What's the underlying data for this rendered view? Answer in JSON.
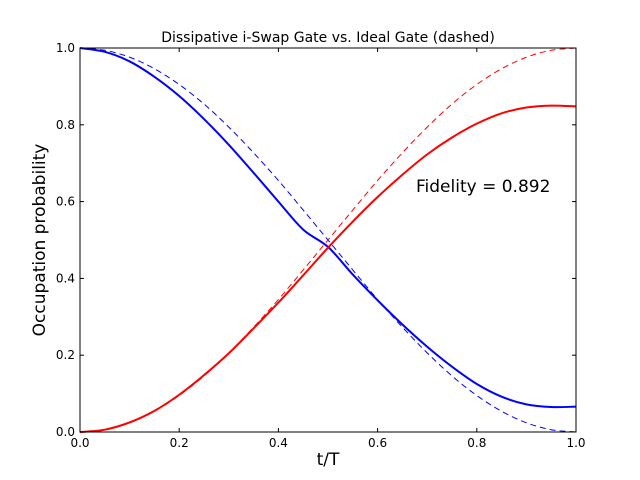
{
  "chart_data": {
    "type": "line",
    "title": "Dissipative i-Swap Gate vs. Ideal Gate (dashed)",
    "xlabel": "t/T",
    "ylabel": "Occupation probability",
    "xlim": [
      0.0,
      1.0
    ],
    "ylim": [
      0.0,
      1.0
    ],
    "x_ticks": [
      "0.0",
      "0.2",
      "0.4",
      "0.6",
      "0.8",
      "1.0"
    ],
    "y_ticks": [
      "0.0",
      "0.2",
      "0.4",
      "0.6",
      "0.8",
      "1.0"
    ],
    "grid": false,
    "annotation": "Fidelity = 0.892",
    "x": [
      0.0,
      0.05,
      0.1,
      0.15,
      0.2,
      0.25,
      0.3,
      0.35,
      0.4,
      0.45,
      0.5,
      0.55,
      0.6,
      0.65,
      0.7,
      0.75,
      0.8,
      0.85,
      0.9,
      0.95,
      1.0
    ],
    "series": [
      {
        "color": "#0000ff",
        "style": "solid",
        "values": [
          1.0,
          0.99,
          0.965,
          0.925,
          0.875,
          0.815,
          0.748,
          0.675,
          0.6,
          0.527,
          0.482,
          0.41,
          0.343,
          0.28,
          0.222,
          0.17,
          0.125,
          0.092,
          0.072,
          0.065,
          0.066
        ]
      },
      {
        "color": "#0000ff",
        "style": "dashed",
        "values": [
          1.0,
          0.994,
          0.976,
          0.946,
          0.905,
          0.854,
          0.794,
          0.727,
          0.655,
          0.578,
          0.5,
          0.422,
          0.345,
          0.273,
          0.206,
          0.146,
          0.095,
          0.054,
          0.024,
          0.006,
          0.0
        ]
      },
      {
        "color": "#ff0000",
        "style": "solid",
        "values": [
          0.0,
          0.006,
          0.025,
          0.055,
          0.097,
          0.148,
          0.205,
          0.27,
          0.337,
          0.408,
          0.48,
          0.548,
          0.612,
          0.67,
          0.723,
          0.767,
          0.803,
          0.83,
          0.845,
          0.85,
          0.848
        ]
      },
      {
        "color": "#ff0000",
        "style": "dashed",
        "values": [
          0.0,
          0.006,
          0.024,
          0.054,
          0.095,
          0.146,
          0.206,
          0.273,
          0.345,
          0.422,
          0.5,
          0.578,
          0.655,
          0.727,
          0.794,
          0.854,
          0.905,
          0.946,
          0.976,
          0.994,
          1.0
        ]
      }
    ]
  }
}
